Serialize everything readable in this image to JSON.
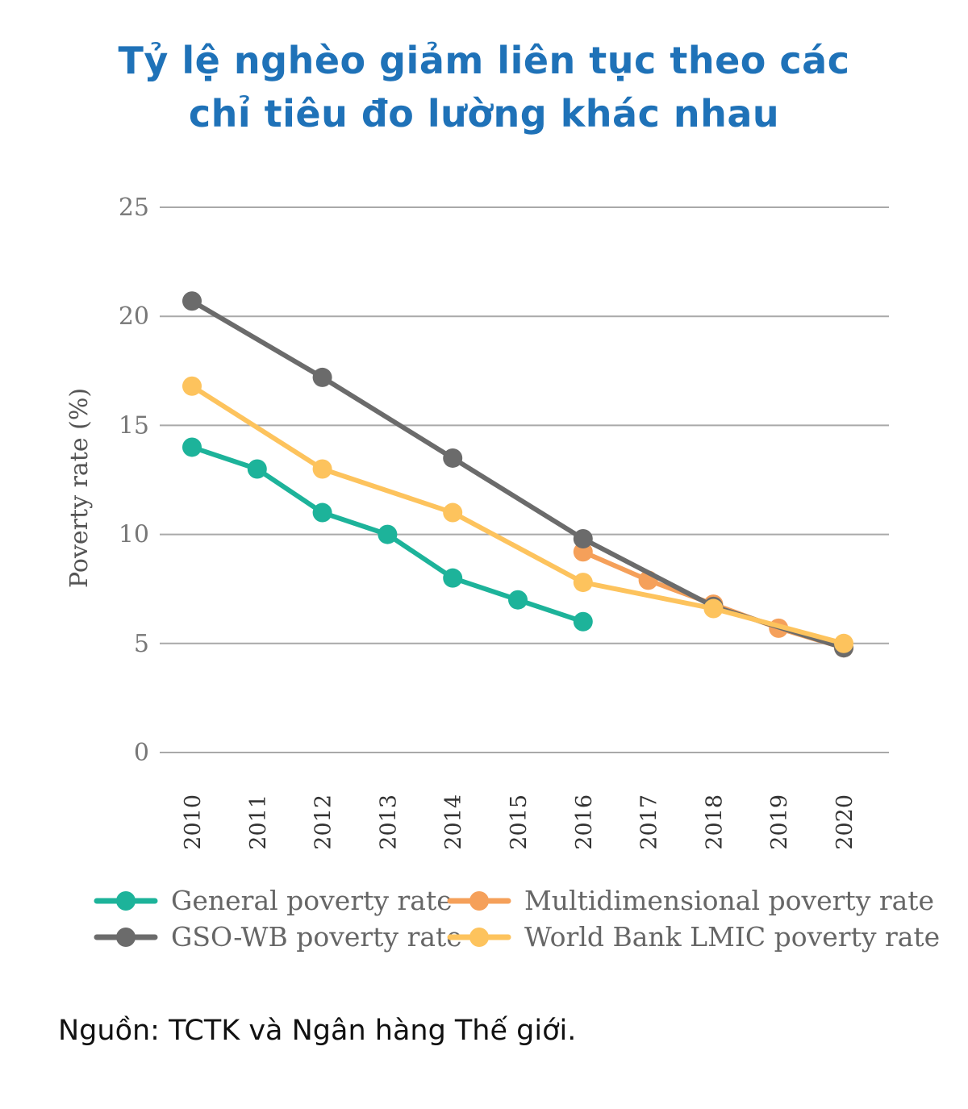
{
  "colors": {
    "title": "#1f72b8",
    "general": "#1db39a",
    "gso_wb": "#6b6b6b",
    "multidimensional": "#f5a05a",
    "world_bank": "#fdc35d",
    "grid": "#a9a9a9"
  },
  "source": "Nguồn: TCTK và Ngân hàng Thế giới.",
  "chart_data": {
    "type": "line",
    "title_lines": [
      "Tỷ lệ nghèo giảm liên tục theo các",
      "chỉ tiêu đo lường khác nhau"
    ],
    "ylabel": "Poverty rate (%)",
    "xlabel": "",
    "ylim": [
      0,
      25
    ],
    "yticks": [
      0,
      5,
      10,
      15,
      20,
      25
    ],
    "x": [
      "2010",
      "2011",
      "2012",
      "2013",
      "2014",
      "2015",
      "2016",
      "2017",
      "2018",
      "2019",
      "2020"
    ],
    "series": [
      {
        "key": "general",
        "name": "General poverty rate",
        "color": "#1db39a",
        "points": [
          [
            "2010",
            14.0
          ],
          [
            "2011",
            13.0
          ],
          [
            "2012",
            11.0
          ],
          [
            "2013",
            10.0
          ],
          [
            "2014",
            8.0
          ],
          [
            "2015",
            7.0
          ],
          [
            "2016",
            6.0
          ]
        ]
      },
      {
        "key": "gso_wb",
        "name": "GSO-WB poverty rate",
        "color": "#6b6b6b",
        "points": [
          [
            "2010",
            20.7
          ],
          [
            "2012",
            17.2
          ],
          [
            "2014",
            13.5
          ],
          [
            "2016",
            9.8
          ],
          [
            "2018",
            6.7
          ],
          [
            "2020",
            4.8
          ]
        ]
      },
      {
        "key": "multidimensional",
        "name": "Multidimensional poverty rate",
        "color": "#f5a05a",
        "points": [
          [
            "2016",
            9.2
          ],
          [
            "2017",
            7.9
          ],
          [
            "2018",
            6.8
          ],
          [
            "2019",
            5.7
          ],
          [
            "2020",
            4.8
          ]
        ]
      },
      {
        "key": "world_bank",
        "name": "World Bank LMIC poverty rate",
        "color": "#fdc35d",
        "points": [
          [
            "2010",
            16.8
          ],
          [
            "2012",
            13.0
          ],
          [
            "2014",
            11.0
          ],
          [
            "2016",
            7.8
          ],
          [
            "2018",
            6.6
          ],
          [
            "2020",
            5.0
          ]
        ]
      }
    ],
    "legend_order": [
      "general",
      "multidimensional",
      "gso_wb",
      "world_bank"
    ],
    "grid": true,
    "legend_position": "bottom"
  }
}
